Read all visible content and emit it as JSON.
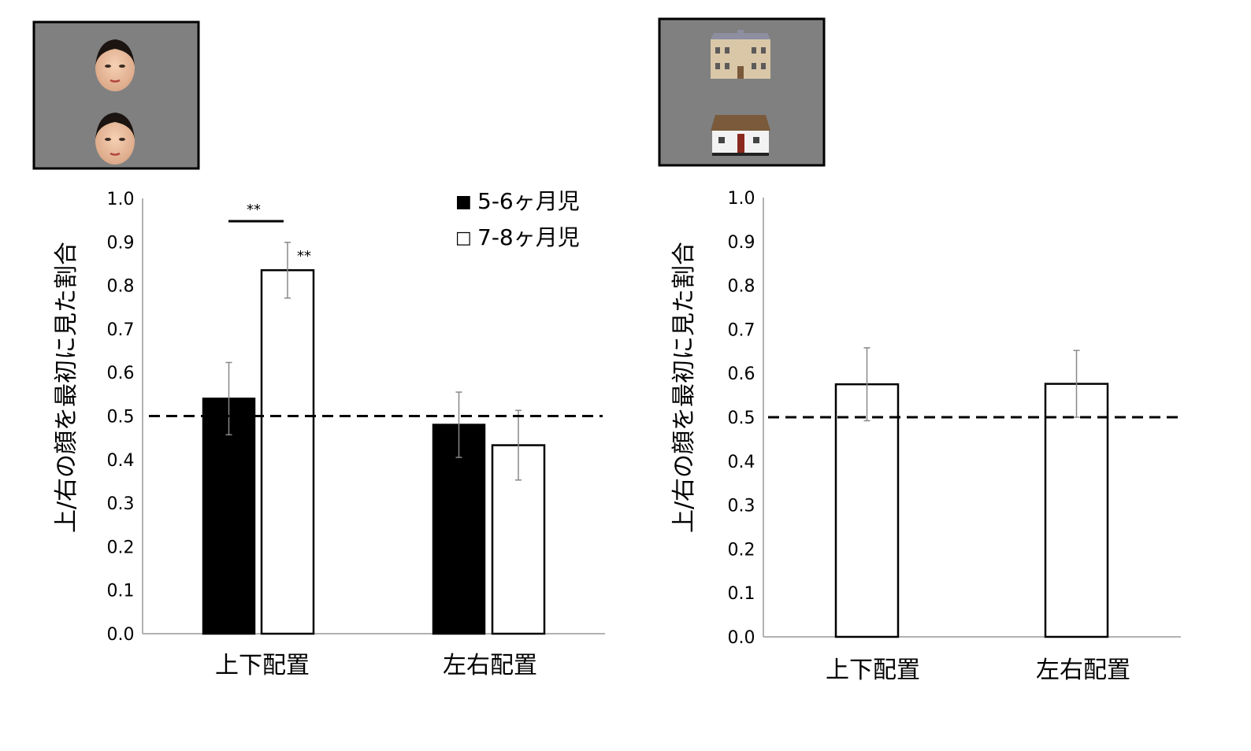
{
  "colors": {
    "background": "#ffffff",
    "stimulus_bg": "#808080",
    "series_5_6": "#000000",
    "series_7_8": "#ffffff",
    "axis": "#000000",
    "error_bar": "#888888"
  },
  "stimuli": [
    {
      "id": "faces",
      "icon": "two-faces-stacked-vertically"
    },
    {
      "id": "houses",
      "icon": "two-houses-stacked-vertically"
    }
  ],
  "chart_data": [
    {
      "type": "bar",
      "ylabel": "上/右の顔を最初に見た割合",
      "ylim": [
        0,
        1
      ],
      "yticks": [
        "0.0",
        "0.1",
        "0.2",
        "0.3",
        "0.4",
        "0.5",
        "0.6",
        "0.7",
        "0.8",
        "0.9",
        "1.0"
      ],
      "categories": [
        "上下配置",
        "左右配置"
      ],
      "reference_line": 0.5,
      "legend_position": "top-right",
      "series": [
        {
          "name": "5-6ヶ月児",
          "legend_marker": "■",
          "fill": "#000000",
          "values": [
            0.54,
            0.48
          ],
          "errors": [
            0.083,
            0.075
          ]
        },
        {
          "name": "7-8ヶ月児",
          "legend_marker": "□",
          "fill": "#ffffff",
          "values": [
            0.835,
            0.433
          ],
          "errors": [
            0.064,
            0.08
          ]
        }
      ],
      "annotations": [
        {
          "text": "**",
          "kind": "between-groups",
          "category": 0
        },
        {
          "text": "**",
          "kind": "vs-chance",
          "category": 0,
          "series": 1
        }
      ]
    },
    {
      "type": "bar",
      "ylabel": "上/右の顔を最初に見た割合",
      "ylim": [
        0,
        1
      ],
      "yticks": [
        "0.0",
        "0.1",
        "0.2",
        "0.3",
        "0.4",
        "0.5",
        "0.6",
        "0.7",
        "0.8",
        "0.9",
        "1.0"
      ],
      "categories": [
        "上下配置",
        "左右配置"
      ],
      "reference_line": 0.5,
      "series": [
        {
          "fill": "#ffffff",
          "values": [
            0.575,
            0.576
          ],
          "errors": [
            0.083,
            0.076
          ]
        }
      ],
      "annotations": []
    }
  ]
}
